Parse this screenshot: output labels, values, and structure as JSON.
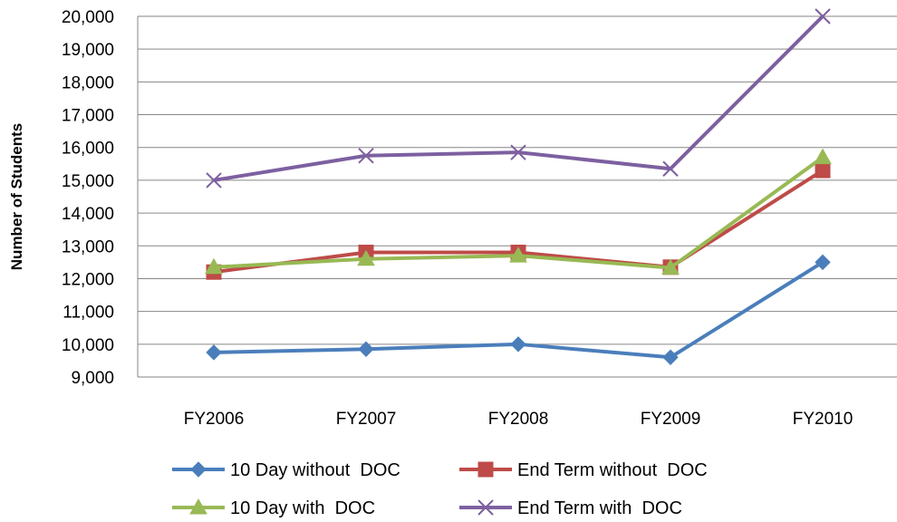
{
  "chart_data": {
    "type": "line",
    "ylabel": "Number of Students",
    "xlabel": "",
    "categories": [
      "FY2006",
      "FY2007",
      "FY2008",
      "FY2009",
      "FY2010"
    ],
    "ylim": [
      9000,
      20000
    ],
    "ytick_step": 1000,
    "yticks": [
      "9,000",
      "10,000",
      "11,000",
      "12,000",
      "13,000",
      "14,000",
      "15,000",
      "16,000",
      "17,000",
      "18,000",
      "19,000",
      "20,000"
    ],
    "grid": true,
    "legend_position": "bottom",
    "series": [
      {
        "name": "10 Day without  DOC",
        "values": [
          9750,
          9850,
          10000,
          9600,
          12500
        ],
        "color": "#4A7EBB",
        "marker": "diamond"
      },
      {
        "name": "End Term without  DOC",
        "values": [
          12200,
          12800,
          12800,
          12350,
          15300
        ],
        "color": "#BE4B48",
        "marker": "square"
      },
      {
        "name": "10 Day with  DOC",
        "values": [
          12350,
          12600,
          12700,
          12330,
          15700
        ],
        "color": "#98B954",
        "marker": "triangle"
      },
      {
        "name": "End Term with  DOC",
        "values": [
          15000,
          15750,
          15850,
          15350,
          20000
        ],
        "color": "#7D60A0",
        "marker": "x"
      }
    ]
  }
}
